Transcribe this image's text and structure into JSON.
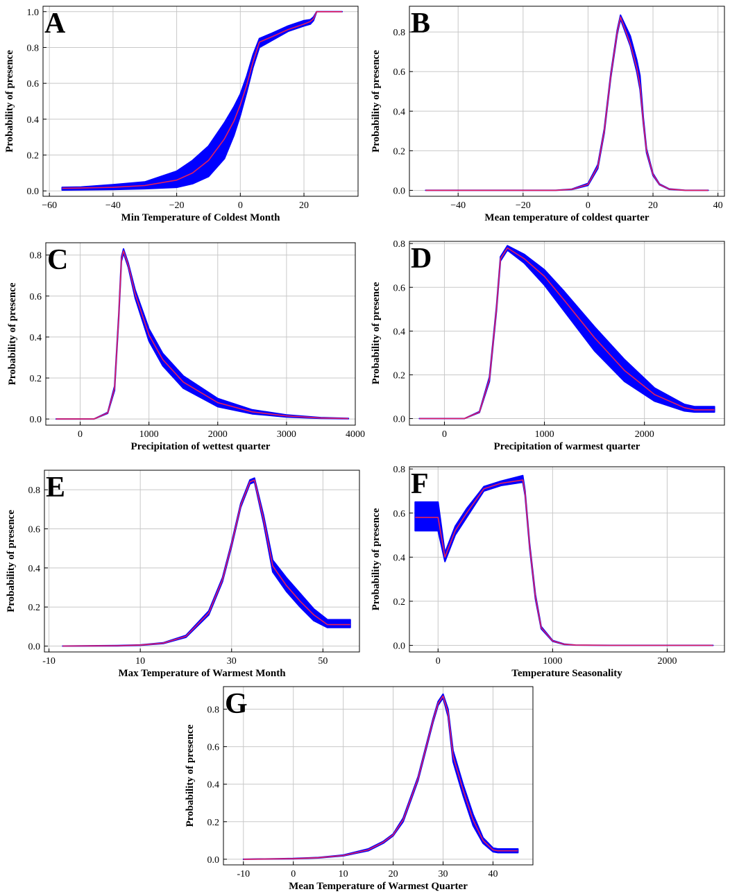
{
  "figure": {
    "colors": {
      "band": "#0000ff",
      "mean_line": "#e8205a",
      "grid": "#c8c8c8",
      "axis": "#000000"
    }
  },
  "chart_data": [
    {
      "id": "A",
      "panel_label": "A",
      "type": "line",
      "xlabel": "Min Temperature of Coldest Month",
      "ylabel": "Probability of presence",
      "xlim": [
        -62,
        37
      ],
      "ylim": [
        -0.03,
        1.03
      ],
      "xticks": [
        -60,
        -40,
        -20,
        0,
        20
      ],
      "xticklabels": [
        "−60",
        "−40",
        "−20",
        "0",
        "20"
      ],
      "yticks": [
        0,
        0.2,
        0.4,
        0.6,
        0.8,
        1.0
      ],
      "yticklabels": [
        "0.0",
        "0.2",
        "0.4",
        "0.6",
        "0.8",
        "1.0"
      ],
      "grid": true,
      "x": [
        -56,
        -50,
        -40,
        -30,
        -20,
        -15,
        -10,
        -5,
        -2,
        0,
        2,
        4,
        6,
        10,
        15,
        20,
        22,
        23,
        24,
        30,
        32
      ],
      "mean": [
        0.015,
        0.016,
        0.02,
        0.03,
        0.06,
        0.1,
        0.17,
        0.29,
        0.39,
        0.48,
        0.59,
        0.72,
        0.83,
        0.86,
        0.9,
        0.93,
        0.945,
        0.96,
        1.0,
        1.0,
        1.0
      ],
      "lower": [
        0.005,
        0.006,
        0.008,
        0.012,
        0.02,
        0.04,
        0.08,
        0.18,
        0.31,
        0.42,
        0.55,
        0.69,
        0.8,
        0.84,
        0.89,
        0.92,
        0.93,
        0.95,
        1.0,
        1.0,
        1.0
      ],
      "upper": [
        0.02,
        0.022,
        0.035,
        0.05,
        0.11,
        0.17,
        0.25,
        0.38,
        0.47,
        0.54,
        0.64,
        0.76,
        0.85,
        0.88,
        0.92,
        0.95,
        0.955,
        0.97,
        1.0,
        1.0,
        1.0
      ]
    },
    {
      "id": "B",
      "panel_label": "B",
      "type": "line",
      "xlabel": "Mean temperature of coldest quarter",
      "ylabel": "Probability of presence",
      "xlim": [
        -55,
        42
      ],
      "ylim": [
        -0.03,
        0.93
      ],
      "xticks": [
        -40,
        -20,
        0,
        20,
        40
      ],
      "xticklabels": [
        "−40",
        "−20",
        "0",
        "20",
        "40"
      ],
      "yticks": [
        0,
        0.2,
        0.4,
        0.6,
        0.8
      ],
      "yticklabels": [
        "0.0",
        "0.2",
        "0.4",
        "0.6",
        "0.8"
      ],
      "grid": true,
      "x": [
        -50,
        -20,
        -10,
        -5,
        0,
        3,
        5,
        7,
        9,
        10,
        11,
        13,
        15,
        16,
        17,
        18,
        20,
        22,
        25,
        30,
        37
      ],
      "mean": [
        0.0,
        0.0,
        0.0,
        0.005,
        0.03,
        0.12,
        0.3,
        0.58,
        0.8,
        0.875,
        0.83,
        0.74,
        0.62,
        0.53,
        0.35,
        0.2,
        0.08,
        0.03,
        0.006,
        0.0,
        0.0
      ],
      "lower": [
        0.0,
        0.0,
        0.0,
        0.004,
        0.025,
        0.11,
        0.29,
        0.57,
        0.79,
        0.865,
        0.82,
        0.73,
        0.6,
        0.51,
        0.34,
        0.19,
        0.075,
        0.028,
        0.005,
        0.0,
        0.0
      ],
      "upper": [
        0.0,
        0.0,
        0.0,
        0.006,
        0.035,
        0.13,
        0.31,
        0.59,
        0.81,
        0.885,
        0.85,
        0.78,
        0.66,
        0.58,
        0.37,
        0.21,
        0.085,
        0.032,
        0.007,
        0.0,
        0.0
      ]
    },
    {
      "id": "C",
      "panel_label": "C",
      "type": "line",
      "xlabel": "Precipitation of wettest quarter",
      "ylabel": "Probability of presence",
      "xlim": [
        -500,
        4000
      ],
      "ylim": [
        -0.03,
        0.86
      ],
      "xticks": [
        0,
        1000,
        2000,
        3000,
        4000
      ],
      "xticklabels": [
        "0",
        "1000",
        "2000",
        "3000",
        "4000"
      ],
      "yticks": [
        0,
        0.2,
        0.4,
        0.6,
        0.8
      ],
      "yticklabels": [
        "0.0",
        "0.2",
        "0.4",
        "0.6",
        "0.8"
      ],
      "grid": true,
      "x": [
        -350,
        200,
        400,
        500,
        560,
        600,
        630,
        700,
        800,
        1000,
        1200,
        1500,
        2000,
        2500,
        3000,
        3500,
        3900
      ],
      "mean": [
        0.0,
        0.0,
        0.03,
        0.15,
        0.5,
        0.78,
        0.82,
        0.75,
        0.61,
        0.41,
        0.29,
        0.18,
        0.08,
        0.035,
        0.015,
        0.005,
        0.002
      ],
      "lower": [
        0.0,
        0.0,
        0.028,
        0.14,
        0.49,
        0.77,
        0.81,
        0.74,
        0.59,
        0.38,
        0.26,
        0.15,
        0.06,
        0.025,
        0.01,
        0.003,
        0.001
      ],
      "upper": [
        0.0,
        0.0,
        0.032,
        0.16,
        0.51,
        0.79,
        0.83,
        0.76,
        0.63,
        0.44,
        0.32,
        0.21,
        0.1,
        0.045,
        0.02,
        0.007,
        0.003
      ]
    },
    {
      "id": "D",
      "panel_label": "D",
      "type": "line",
      "xlabel": "Precipitation of warmest quarter",
      "ylabel": "Probability of presence",
      "xlim": [
        -350,
        2800
      ],
      "ylim": [
        -0.03,
        0.81
      ],
      "xticks": [
        0,
        1000,
        2000
      ],
      "xticklabels": [
        "0",
        "1000",
        "2000"
      ],
      "yticks": [
        0,
        0.2,
        0.4,
        0.6,
        0.8
      ],
      "yticklabels": [
        "0.0",
        "0.2",
        "0.4",
        "0.6",
        "0.8"
      ],
      "grid": true,
      "x": [
        -250,
        200,
        350,
        450,
        520,
        560,
        630,
        800,
        1000,
        1200,
        1500,
        1800,
        2100,
        2400,
        2500,
        2700
      ],
      "mean": [
        0.0,
        0.0,
        0.03,
        0.18,
        0.5,
        0.73,
        0.78,
        0.73,
        0.65,
        0.54,
        0.37,
        0.22,
        0.11,
        0.05,
        0.04,
        0.04
      ],
      "lower": [
        0.0,
        0.0,
        0.028,
        0.17,
        0.49,
        0.72,
        0.77,
        0.71,
        0.61,
        0.49,
        0.31,
        0.17,
        0.08,
        0.035,
        0.03,
        0.03
      ],
      "upper": [
        0.0,
        0.0,
        0.032,
        0.19,
        0.51,
        0.74,
        0.79,
        0.75,
        0.68,
        0.58,
        0.42,
        0.27,
        0.14,
        0.065,
        0.055,
        0.055
      ]
    },
    {
      "id": "E",
      "panel_label": "E",
      "type": "line",
      "xlabel": "Max Temperature of Warmest Month",
      "ylabel": "Probability of presence",
      "xlim": [
        -11,
        58
      ],
      "ylim": [
        -0.03,
        0.9
      ],
      "xticks": [
        -10,
        10,
        30,
        50
      ],
      "xticklabels": [
        "-10",
        "10",
        "30",
        "50"
      ],
      "yticks": [
        0,
        0.2,
        0.4,
        0.6,
        0.8
      ],
      "yticklabels": [
        "0.0",
        "0.2",
        "0.4",
        "0.6",
        "0.8"
      ],
      "grid": true,
      "x": [
        -7,
        5,
        10,
        15,
        20,
        25,
        28,
        30,
        32,
        34,
        35,
        37,
        39,
        42,
        45,
        48,
        51,
        56
      ],
      "mean": [
        0.0,
        0.002,
        0.005,
        0.015,
        0.05,
        0.17,
        0.34,
        0.52,
        0.72,
        0.84,
        0.85,
        0.65,
        0.41,
        0.31,
        0.23,
        0.16,
        0.11,
        0.11
      ],
      "lower": [
        0.0,
        0.001,
        0.004,
        0.013,
        0.045,
        0.16,
        0.33,
        0.51,
        0.71,
        0.83,
        0.84,
        0.63,
        0.38,
        0.28,
        0.2,
        0.13,
        0.095,
        0.095
      ],
      "upper": [
        0.0,
        0.003,
        0.006,
        0.017,
        0.055,
        0.18,
        0.35,
        0.53,
        0.73,
        0.85,
        0.86,
        0.67,
        0.44,
        0.35,
        0.27,
        0.19,
        0.135,
        0.135
      ]
    },
    {
      "id": "F",
      "panel_label": "F",
      "type": "line",
      "xlabel": "Temperature Seasonality",
      "ylabel": "Probability of presence",
      "xlim": [
        -250,
        2500
      ],
      "ylim": [
        -0.03,
        0.81
      ],
      "xticks": [
        0,
        1000,
        2000
      ],
      "xticklabels": [
        "0",
        "1000",
        "2000"
      ],
      "yticks": [
        0,
        0.2,
        0.4,
        0.6,
        0.8
      ],
      "yticklabels": [
        "0.0",
        "0.2",
        "0.4",
        "0.6",
        "0.8"
      ],
      "grid": true,
      "x": [
        -200,
        0,
        60,
        150,
        250,
        400,
        550,
        740,
        760,
        800,
        850,
        900,
        1000,
        1100,
        1200,
        1500,
        2400
      ],
      "mean": [
        0.58,
        0.58,
        0.4,
        0.52,
        0.6,
        0.71,
        0.735,
        0.75,
        0.69,
        0.45,
        0.22,
        0.08,
        0.02,
        0.005,
        0.001,
        0.0,
        0.0
      ],
      "lower": [
        0.52,
        0.52,
        0.38,
        0.5,
        0.58,
        0.7,
        0.725,
        0.74,
        0.68,
        0.44,
        0.21,
        0.075,
        0.018,
        0.004,
        0.001,
        0.0,
        0.0
      ],
      "upper": [
        0.65,
        0.65,
        0.42,
        0.54,
        0.62,
        0.72,
        0.745,
        0.77,
        0.7,
        0.46,
        0.23,
        0.085,
        0.022,
        0.006,
        0.001,
        0.0,
        0.0
      ]
    },
    {
      "id": "G",
      "panel_label": "G",
      "type": "line",
      "xlabel": "Mean Temperature of Warmest Quarter",
      "ylabel": "Probability of presence",
      "xlim": [
        -14,
        48
      ],
      "ylim": [
        -0.03,
        0.92
      ],
      "xticks": [
        -10,
        0,
        10,
        20,
        30,
        40
      ],
      "xticklabels": [
        "-10",
        "0",
        "10",
        "20",
        "30",
        "40"
      ],
      "yticks": [
        0,
        0.2,
        0.4,
        0.6,
        0.8
      ],
      "yticklabels": [
        "0.0",
        "0.2",
        "0.4",
        "0.6",
        "0.8"
      ],
      "grid": true,
      "x": [
        -10,
        0,
        5,
        10,
        15,
        18,
        20,
        22,
        25,
        28,
        29,
        30,
        31,
        32,
        34,
        36,
        38,
        40,
        41,
        45
      ],
      "mean": [
        0.0,
        0.003,
        0.008,
        0.02,
        0.05,
        0.09,
        0.13,
        0.21,
        0.43,
        0.74,
        0.83,
        0.87,
        0.78,
        0.55,
        0.37,
        0.21,
        0.1,
        0.05,
        0.045,
        0.045
      ],
      "lower": [
        0.0,
        0.002,
        0.007,
        0.018,
        0.045,
        0.085,
        0.125,
        0.2,
        0.42,
        0.73,
        0.82,
        0.86,
        0.76,
        0.52,
        0.34,
        0.18,
        0.085,
        0.04,
        0.035,
        0.035
      ],
      "upper": [
        0.0,
        0.004,
        0.009,
        0.022,
        0.055,
        0.095,
        0.135,
        0.22,
        0.44,
        0.75,
        0.84,
        0.88,
        0.8,
        0.58,
        0.4,
        0.24,
        0.115,
        0.06,
        0.055,
        0.055
      ]
    }
  ]
}
